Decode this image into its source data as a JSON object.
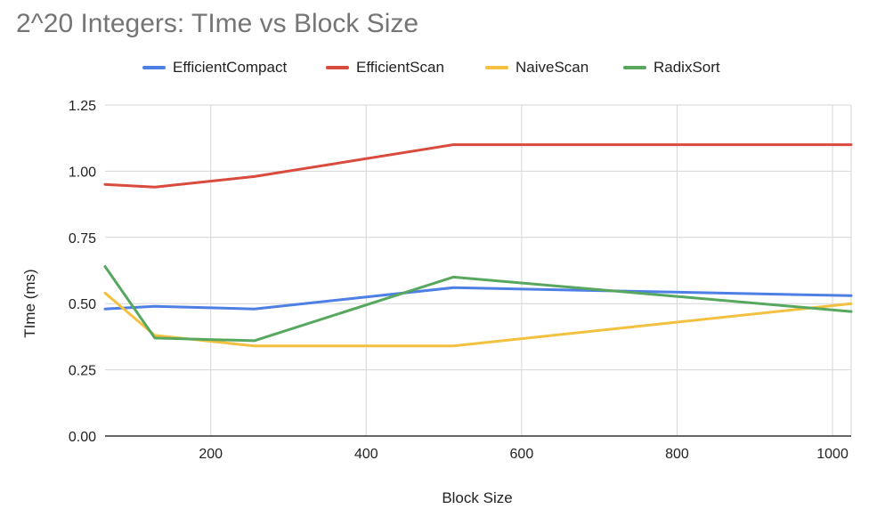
{
  "chart_data": {
    "type": "line",
    "title": "2^20 Integers: TIme vs Block Size",
    "xlabel": "Block Size",
    "ylabel": "TIme (ms)",
    "xlim": [
      64,
      1024
    ],
    "ylim": [
      0,
      1.25
    ],
    "x_ticks": [
      200,
      400,
      600,
      800,
      1000
    ],
    "y_ticks": [
      "0.00",
      "0.25",
      "0.50",
      "0.75",
      "1.00",
      "1.25"
    ],
    "grid": true,
    "legend_position": "top",
    "x": [
      64,
      128,
      256,
      512,
      1024
    ],
    "series": [
      {
        "name": "EfficientCompact",
        "color": "#4e7fe4",
        "values": [
          0.48,
          0.49,
          0.48,
          0.56,
          0.53
        ]
      },
      {
        "name": "EfficientScan",
        "color": "#d84b3d",
        "values": [
          0.95,
          0.94,
          0.98,
          1.1,
          1.1
        ]
      },
      {
        "name": "NaiveScan",
        "color": "#f3c03f",
        "values": [
          0.54,
          0.38,
          0.34,
          0.34,
          0.5
        ]
      },
      {
        "name": "RadixSort",
        "color": "#57a75f",
        "values": [
          0.64,
          0.37,
          0.36,
          0.6,
          0.47
        ]
      }
    ]
  }
}
